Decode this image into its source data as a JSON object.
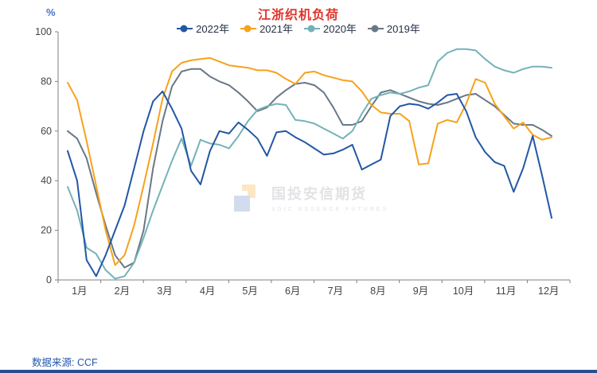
{
  "header": {
    "title": "江浙织机负荷",
    "unit_label": "%"
  },
  "watermark": {
    "brand_cn": "国投安信期货",
    "brand_en": "SDIC ESSENCE FUTURES"
  },
  "footer": {
    "source_label": "数据来源: CCF"
  },
  "colors": {
    "title_red": "#e0342b",
    "unit_blue": "#4472c4",
    "source_blue": "#2457b0",
    "bottom_bar_navy": "#2b4d8e",
    "axis_line": "#808080",
    "tick_text": "#444444",
    "legend_text": "#253044"
  },
  "chart_data": {
    "type": "line",
    "title": "江浙织机负荷",
    "ylabel": "%",
    "ylim": [
      0,
      100
    ],
    "yticks": [
      0,
      20,
      40,
      60,
      80,
      100
    ],
    "grid": false,
    "legend_position": "top",
    "categories": [
      "1月",
      "2月",
      "3月",
      "4月",
      "5月",
      "6月",
      "7月",
      "8月",
      "9月",
      "10月",
      "11月",
      "12月"
    ],
    "x_unit": "week",
    "series": [
      {
        "name": "2022年",
        "color": "#2257a4",
        "values": [
          52,
          40,
          8,
          1.5,
          10,
          20,
          30,
          45,
          60,
          72,
          76,
          69,
          61,
          44,
          38.5,
          52,
          60,
          59,
          63.5,
          60.5,
          57,
          50,
          59.5,
          60,
          57.5,
          55.5,
          53,
          50.5,
          51,
          52.5,
          54.5,
          44.5,
          46.5,
          48.5,
          66,
          70,
          71,
          70.5,
          69,
          71.5,
          74.5,
          75,
          68,
          57.5,
          51.5,
          47.5,
          46,
          35.5,
          45,
          58,
          42,
          25
        ]
      },
      {
        "name": "2021年",
        "color": "#f7a21b",
        "values": [
          79.5,
          72.5,
          56,
          38,
          20,
          6,
          10,
          22,
          38,
          55,
          73,
          84,
          87.5,
          88.5,
          89,
          89.5,
          88,
          86.5,
          86,
          85.5,
          84.5,
          84.5,
          83.5,
          81,
          79,
          83.5,
          84,
          82.5,
          81.5,
          80.5,
          80,
          76,
          70.5,
          67.5,
          67,
          67,
          64,
          46.5,
          47,
          63,
          64.5,
          63.5,
          71,
          81,
          79.5,
          71,
          66,
          61,
          63.5,
          58.5,
          56.5,
          57.5
        ]
      },
      {
        "name": "2020年",
        "color": "#74b2b8",
        "values": [
          37.5,
          28,
          13,
          10.5,
          4,
          0.5,
          1.5,
          7,
          17,
          28,
          38,
          48,
          57,
          46,
          56.5,
          55,
          54.5,
          53,
          58,
          64,
          68.5,
          70,
          71,
          70.5,
          64.5,
          64,
          63,
          61,
          59,
          57,
          60,
          67,
          73,
          74.5,
          75.5,
          75,
          76,
          77.5,
          78.5,
          88,
          91.5,
          93,
          93,
          92.5,
          89,
          86,
          84.5,
          83.5,
          85,
          86,
          86,
          85.5
        ]
      },
      {
        "name": "2019年",
        "color": "#697886",
        "values": [
          60,
          57,
          49,
          35,
          22,
          10,
          5,
          7,
          20,
          45,
          64,
          78,
          84,
          85,
          85,
          82,
          80,
          78.5,
          75.5,
          72,
          68,
          69.5,
          73.5,
          76.5,
          79,
          79.5,
          78.5,
          75.5,
          69.5,
          62.5,
          62.5,
          64,
          70,
          75.5,
          76.5,
          75,
          73.5,
          72,
          71,
          70.5,
          71.5,
          73,
          74.5,
          75,
          72.5,
          70,
          66.5,
          63,
          62.5,
          62.5,
          60.5,
          58
        ]
      }
    ]
  }
}
